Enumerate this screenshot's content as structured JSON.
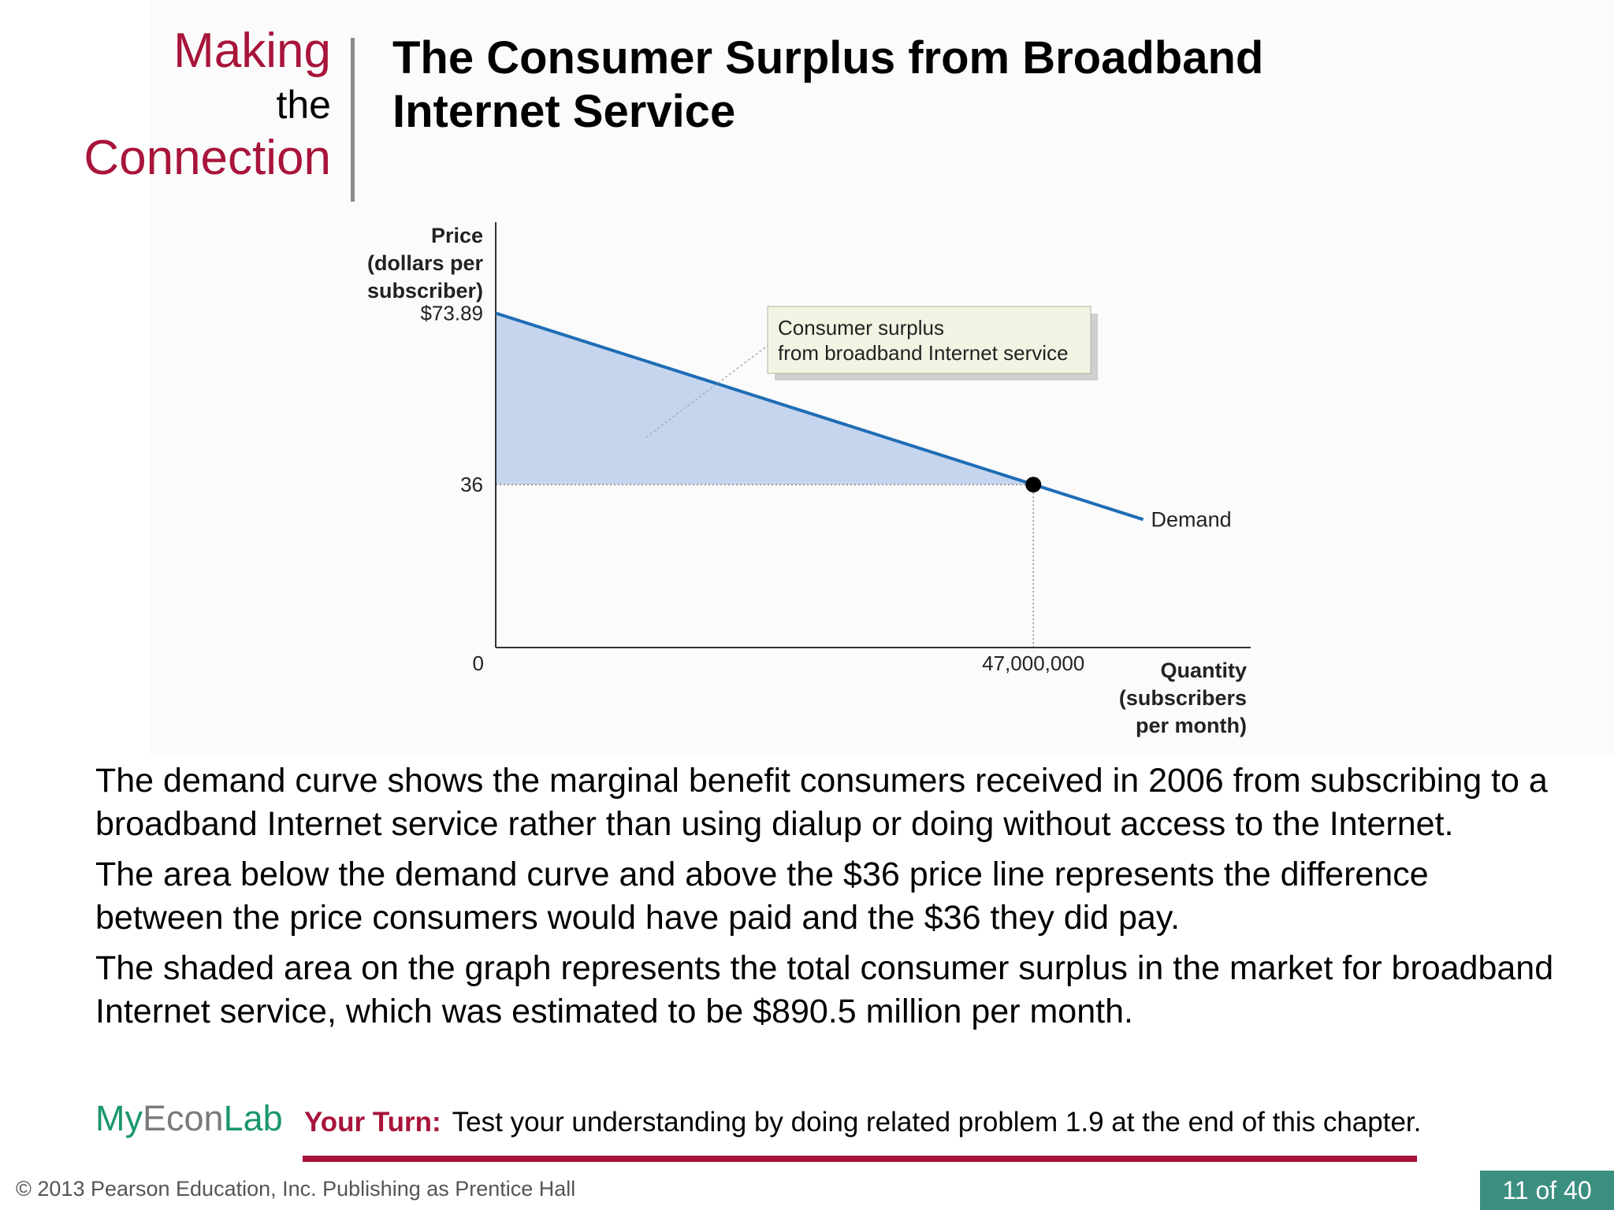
{
  "heading": {
    "making": "Making",
    "the": "the",
    "connection": "Connection",
    "title_line1": "The Consumer Surplus from Broadband",
    "title_line2": "Internet Service"
  },
  "chart_data": {
    "type": "line",
    "ylabel": [
      "Price",
      "(dollars per",
      "subscriber)"
    ],
    "xlabel": [
      "Quantity",
      "(subscribers",
      "per month)"
    ],
    "y_ticks": [
      {
        "value": 73.89,
        "label": "$73.89"
      },
      {
        "value": 36,
        "label": "36"
      },
      {
        "value": 0,
        "label": "0"
      }
    ],
    "x_ticks": [
      {
        "value": 47000000,
        "label": "47,000,000"
      }
    ],
    "ylim": [
      0,
      94
    ],
    "xlim": [
      0,
      66000000
    ],
    "series": [
      {
        "name": "Demand",
        "x": [
          0,
          56600000
        ],
        "y": [
          73.89,
          28.3
        ]
      }
    ],
    "equilibrium": {
      "x": 47000000,
      "y": 36
    },
    "shaded_area": {
      "from_price": 36,
      "to_price": 73.89,
      "label": "Consumer surplus"
    },
    "annotation": [
      "Consumer surplus",
      "from broadband Internet service"
    ],
    "colors": {
      "demand": "#1f6db5",
      "shade": "#c6d5ee",
      "point": "#000000",
      "callout_bg": "#f3f3e4"
    }
  },
  "body": {
    "p1": "The demand curve shows the marginal benefit consumers received in 2006 from subscribing to a broadband Internet service rather than using dialup or doing without access to the Internet.",
    "p2": "The area below the demand curve and above the $36 price line represents the difference between the price consumers would have paid and the $36 they did pay.",
    "p3": "The shaded area on the graph represents the total consumer surplus in the market for broadband Internet service, which was estimated to be $890.5 million per month."
  },
  "logo": {
    "my": "My",
    "econ": "Econ",
    "lab": "Lab"
  },
  "your_turn": {
    "label": "Your Turn:",
    "text": "Test your understanding by doing related problem 1.9 at the end of this chapter."
  },
  "footer": {
    "copyright": "© 2013 Pearson Education, Inc. Publishing as Prentice Hall",
    "page": "11 of 40"
  }
}
